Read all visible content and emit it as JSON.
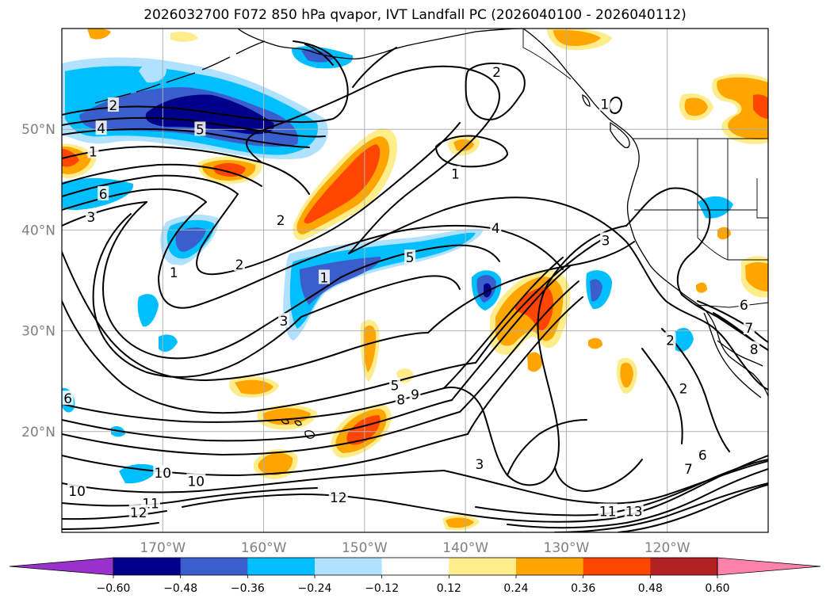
{
  "title": "2026032700 F072 850 hPa qvapor, IVT Landfall PC (2026040100 - 2026040112)",
  "map": {
    "lon_range": [
      -180,
      -110
    ],
    "lat_range": [
      10,
      60
    ],
    "lat_ticks": [
      {
        "value": 50,
        "label": "50°N"
      },
      {
        "value": 40,
        "label": "40°N"
      },
      {
        "value": 30,
        "label": "30°N"
      },
      {
        "value": 20,
        "label": "20°N"
      }
    ],
    "lon_ticks": [
      {
        "value": -170,
        "label": "170°W"
      },
      {
        "value": -160,
        "label": "160°W"
      },
      {
        "value": -150,
        "label": "150°W"
      },
      {
        "value": -140,
        "label": "140°W"
      },
      {
        "value": -130,
        "label": "130°W"
      },
      {
        "value": -120,
        "label": "120°W"
      }
    ],
    "grid": true
  },
  "colorbar": {
    "levels": [
      "−0.60",
      "−0.48",
      "−0.36",
      "−0.24",
      "−0.12",
      "0.12",
      "0.24",
      "0.36",
      "0.48",
      "0.60"
    ],
    "colors": [
      "#9932cc",
      "#00008b",
      "#3a5fcd",
      "#00bfff",
      "#b0e2ff",
      "#ffffff",
      "#ffec8b",
      "#ffa500",
      "#ff4500",
      "#b22222",
      "#ff82ab"
    ],
    "extend": "both"
  },
  "contour_labels": [
    {
      "text": "2",
      "lon": -174.9,
      "lat": 52.3
    },
    {
      "text": "4",
      "lon": -176.1,
      "lat": 50.0
    },
    {
      "text": "5",
      "lon": -166.3,
      "lat": 49.9
    },
    {
      "text": "1",
      "lon": -176.9,
      "lat": 47.7
    },
    {
      "text": "6",
      "lon": -175.9,
      "lat": 43.5
    },
    {
      "text": "3",
      "lon": -177.1,
      "lat": 41.2
    },
    {
      "text": "2",
      "lon": -158.3,
      "lat": 40.9
    },
    {
      "text": "2",
      "lon": -162.4,
      "lat": 36.5
    },
    {
      "text": "1",
      "lon": -168.9,
      "lat": 35.7
    },
    {
      "text": "1",
      "lon": -154.0,
      "lat": 35.2
    },
    {
      "text": "3",
      "lon": -158.0,
      "lat": 30.9
    },
    {
      "text": "5",
      "lon": -145.5,
      "lat": 37.2
    },
    {
      "text": "4",
      "lon": -137.0,
      "lat": 40.1
    },
    {
      "text": "3",
      "lon": -126.1,
      "lat": 38.9
    },
    {
      "text": "2",
      "lon": -136.9,
      "lat": 55.6
    },
    {
      "text": "1",
      "lon": -141.0,
      "lat": 45.5
    },
    {
      "text": "1",
      "lon": -126.2,
      "lat": 52.4
    },
    {
      "text": "5",
      "lon": -147.0,
      "lat": 24.5
    },
    {
      "text": "8",
      "lon": -146.4,
      "lat": 23.1
    },
    {
      "text": "9",
      "lon": -145.0,
      "lat": 23.6
    },
    {
      "text": "2",
      "lon": -119.7,
      "lat": 29.0
    },
    {
      "text": "2",
      "lon": -118.4,
      "lat": 24.2
    },
    {
      "text": "3",
      "lon": -138.6,
      "lat": 16.7
    },
    {
      "text": "10",
      "lon": -170.0,
      "lat": 15.8
    },
    {
      "text": "10",
      "lon": -166.7,
      "lat": 15.0
    },
    {
      "text": "10",
      "lon": -178.5,
      "lat": 14.0
    },
    {
      "text": "11",
      "lon": -171.2,
      "lat": 12.8
    },
    {
      "text": "12",
      "lon": -172.4,
      "lat": 11.9
    },
    {
      "text": "12",
      "lon": -152.6,
      "lat": 13.4
    },
    {
      "text": "11",
      "lon": -125.9,
      "lat": 12.0
    },
    {
      "text": "13",
      "lon": -123.3,
      "lat": 12.0
    },
    {
      "text": "6",
      "lon": -116.5,
      "lat": 17.6
    },
    {
      "text": "7",
      "lon": -117.9,
      "lat": 16.2
    },
    {
      "text": "6",
      "lon": -112.4,
      "lat": 32.5
    },
    {
      "text": "7",
      "lon": -111.9,
      "lat": 30.2
    },
    {
      "text": "8",
      "lon": -111.4,
      "lat": 28.1
    },
    {
      "text": "6",
      "lon": -179.4,
      "lat": 23.2
    }
  ]
}
